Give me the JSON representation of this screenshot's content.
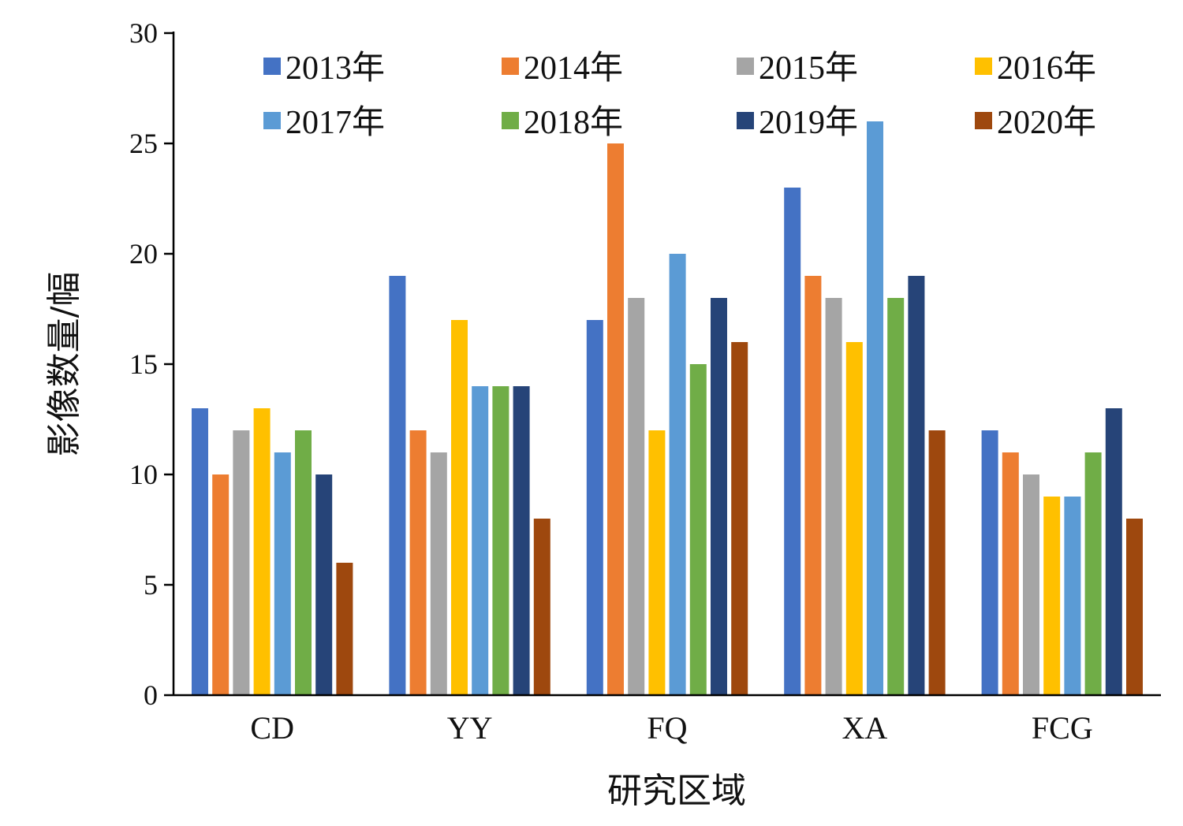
{
  "chart_data": {
    "type": "bar",
    "title": "",
    "xlabel": "研究区域",
    "ylabel": "影像数量/幅",
    "ylim": [
      0,
      30
    ],
    "yticks": [
      0,
      5,
      10,
      15,
      20,
      25,
      30
    ],
    "grid": false,
    "legend_position": "top",
    "categories": [
      "CD",
      "YY",
      "FQ",
      "XA",
      "FCG"
    ],
    "series": [
      {
        "name": "2013年",
        "color": "#4472C4",
        "values": [
          13,
          19,
          17,
          23,
          12
        ]
      },
      {
        "name": "2014年",
        "color": "#ED7D31",
        "values": [
          10,
          12,
          25,
          19,
          11
        ]
      },
      {
        "name": "2015年",
        "color": "#A5A5A5",
        "values": [
          12,
          11,
          18,
          18,
          10
        ]
      },
      {
        "name": "2016年",
        "color": "#FFC000",
        "values": [
          13,
          17,
          12,
          16,
          9
        ]
      },
      {
        "name": "2017年",
        "color": "#5B9BD5",
        "values": [
          11,
          14,
          20,
          26,
          9
        ]
      },
      {
        "name": "2018年",
        "color": "#70AD47",
        "values": [
          12,
          14,
          15,
          18,
          11
        ]
      },
      {
        "name": "2019年",
        "color": "#264478",
        "values": [
          10,
          14,
          18,
          19,
          13
        ]
      },
      {
        "name": "2020年",
        "color": "#9E480E",
        "values": [
          6,
          8,
          16,
          12,
          8
        ]
      }
    ]
  }
}
